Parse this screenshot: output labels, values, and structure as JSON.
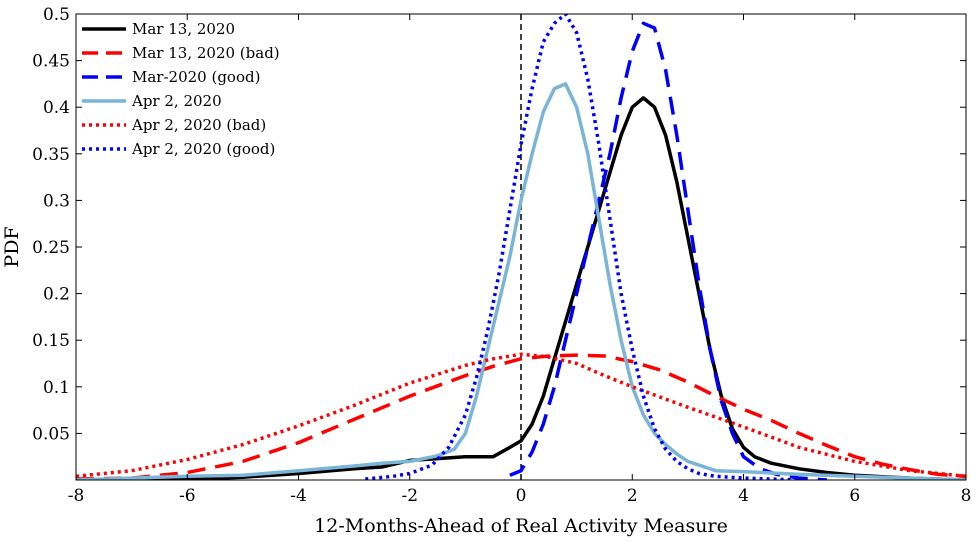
{
  "chart_data": {
    "type": "line",
    "title": "",
    "xlabel": "12-Months-Ahead of Real Activity Measure",
    "ylabel": "PDF",
    "xlim": [
      -8,
      8
    ],
    "ylim": [
      0,
      0.5
    ],
    "xticks": [
      -8,
      -6,
      -4,
      -2,
      0,
      2,
      4,
      6,
      8
    ],
    "yticks": [
      0.05,
      0.1,
      0.15,
      0.2,
      0.25,
      0.3,
      0.35,
      0.4,
      0.45,
      0.5
    ],
    "xtick_labels": [
      "-8",
      "-6",
      "-4",
      "-2",
      "0",
      "2",
      "4",
      "6",
      "8"
    ],
    "ytick_labels": [
      "0.05",
      "0.1",
      "0.15",
      "0.2",
      "0.25",
      "0.3",
      "0.35",
      "0.4",
      "0.45",
      "0.5"
    ],
    "grid": false,
    "legend_position": "top-left",
    "vline": {
      "x": 0,
      "style": "dashed",
      "color": "#000000"
    },
    "series": [
      {
        "name": "Mar 13, 2020",
        "color": "#000000",
        "style": "solid",
        "x": [
          -8,
          -7,
          -6,
          -5,
          -4,
          -3,
          -2.5,
          -2,
          -1.5,
          -1,
          -0.5,
          -0.2,
          0,
          0.2,
          0.4,
          0.6,
          0.8,
          1,
          1.2,
          1.4,
          1.6,
          1.8,
          2,
          2.2,
          2.4,
          2.6,
          2.8,
          3,
          3.2,
          3.4,
          3.6,
          3.8,
          4,
          4.2,
          4.5,
          5,
          5.5,
          6,
          7,
          8
        ],
        "y": [
          0,
          0,
          0.001,
          0.003,
          0.007,
          0.012,
          0.014,
          0.021,
          0.023,
          0.025,
          0.025,
          0.035,
          0.042,
          0.06,
          0.09,
          0.13,
          0.17,
          0.21,
          0.25,
          0.29,
          0.33,
          0.37,
          0.4,
          0.41,
          0.4,
          0.37,
          0.32,
          0.26,
          0.2,
          0.14,
          0.09,
          0.055,
          0.035,
          0.025,
          0.018,
          0.012,
          0.008,
          0.005,
          0.002,
          0
        ]
      },
      {
        "name": "Mar 13, 2020 (bad)",
        "color": "#ff0000",
        "style": "dashed",
        "x": [
          -8,
          -7,
          -6,
          -5,
          -4,
          -3,
          -2,
          -1,
          -0.5,
          0,
          0.5,
          1,
          1.5,
          2,
          2.5,
          3,
          3.5,
          4,
          4.5,
          5,
          5.5,
          6,
          6.5,
          7,
          7.5,
          8
        ],
        "y": [
          0.001,
          0.002,
          0.008,
          0.02,
          0.04,
          0.065,
          0.09,
          0.112,
          0.122,
          0.13,
          0.133,
          0.134,
          0.133,
          0.127,
          0.118,
          0.105,
          0.09,
          0.076,
          0.064,
          0.05,
          0.037,
          0.025,
          0.017,
          0.011,
          0.006,
          0.004
        ]
      },
      {
        "name": "Mar-2020 (good)",
        "color": "#0000ff",
        "style": "dashed",
        "x": [
          -0.2,
          0,
          0.2,
          0.4,
          0.6,
          0.8,
          1,
          1.2,
          1.4,
          1.6,
          1.8,
          2,
          2.2,
          2.4,
          2.6,
          2.8,
          3,
          3.2,
          3.4,
          3.6,
          3.8,
          4,
          4.3,
          4.6,
          5,
          5.5
        ],
        "y": [
          0.005,
          0.01,
          0.03,
          0.06,
          0.1,
          0.15,
          0.2,
          0.25,
          0.3,
          0.35,
          0.41,
          0.46,
          0.49,
          0.485,
          0.44,
          0.37,
          0.29,
          0.21,
          0.14,
          0.085,
          0.05,
          0.025,
          0.012,
          0.006,
          0.002,
          0
        ]
      },
      {
        "name": "Apr 2, 2020",
        "color": "#7ab4d6",
        "style": "solid",
        "x": [
          -8,
          -7,
          -6,
          -5,
          -4,
          -3,
          -2.5,
          -2,
          -1.5,
          -1.2,
          -1,
          -0.8,
          -0.6,
          -0.4,
          -0.2,
          0,
          0.2,
          0.4,
          0.6,
          0.8,
          1,
          1.2,
          1.4,
          1.6,
          1.8,
          2,
          2.2,
          2.4,
          2.6,
          2.8,
          3,
          3.5,
          4,
          5,
          6,
          7,
          8
        ],
        "y": [
          0,
          0.002,
          0.004,
          0.005,
          0.01,
          0.015,
          0.018,
          0.02,
          0.026,
          0.033,
          0.05,
          0.09,
          0.14,
          0.19,
          0.24,
          0.3,
          0.35,
          0.395,
          0.42,
          0.425,
          0.4,
          0.35,
          0.28,
          0.21,
          0.15,
          0.1,
          0.07,
          0.05,
          0.038,
          0.028,
          0.02,
          0.01,
          0.009,
          0.006,
          0.004,
          0.002,
          0
        ]
      },
      {
        "name": "Apr 2, 2020 (bad)",
        "color": "#ff0000",
        "style": "dotted",
        "x": [
          -8,
          -7,
          -6,
          -5,
          -4,
          -3,
          -2,
          -1,
          -0.5,
          0,
          0.5,
          1,
          1.5,
          2,
          3,
          4,
          5,
          6,
          7,
          8
        ],
        "y": [
          0.004,
          0.01,
          0.022,
          0.038,
          0.058,
          0.08,
          0.104,
          0.123,
          0.13,
          0.135,
          0.132,
          0.125,
          0.112,
          0.1,
          0.078,
          0.057,
          0.035,
          0.02,
          0.01,
          0.004
        ]
      },
      {
        "name": "Apr 2, 2020 (good)",
        "color": "#0000ff",
        "style": "dotted",
        "x": [
          -2.8,
          -2.3,
          -2,
          -1.6,
          -1.3,
          -1,
          -0.8,
          -0.6,
          -0.4,
          -0.2,
          0,
          0.2,
          0.4,
          0.6,
          0.8,
          1,
          1.2,
          1.4,
          1.6,
          1.8,
          2,
          2.2,
          2.4,
          2.6,
          2.8,
          3,
          3.2,
          3.5,
          4,
          4.5,
          5
        ],
        "y": [
          0.001,
          0.004,
          0.007,
          0.016,
          0.035,
          0.07,
          0.11,
          0.16,
          0.22,
          0.29,
          0.36,
          0.42,
          0.47,
          0.49,
          0.5,
          0.48,
          0.43,
          0.36,
          0.28,
          0.2,
          0.14,
          0.09,
          0.055,
          0.033,
          0.02,
          0.012,
          0.007,
          0.004,
          0.002,
          0.001,
          0
        ]
      }
    ]
  }
}
